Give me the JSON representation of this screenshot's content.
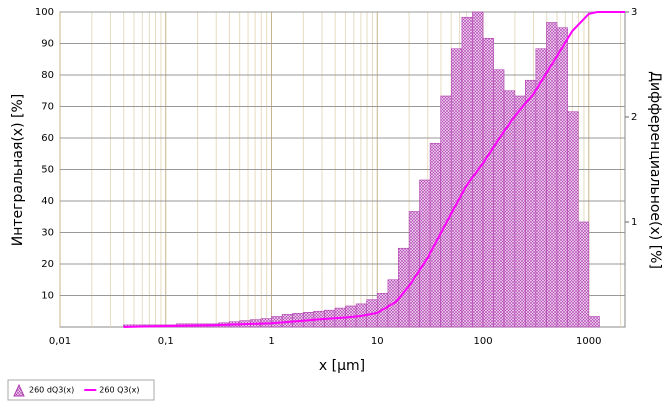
{
  "chart_data": {
    "type": "combo",
    "xlabel": "x [µm]",
    "ylabel": "Интегральная(x) [%]",
    "y2label": "Дифференциальное(x) [%]",
    "xscale": "log",
    "xlim": [
      0.01,
      2200
    ],
    "xticks": [
      {
        "value": 0.01,
        "label": "0,01"
      },
      {
        "value": 0.1,
        "label": "0,1"
      },
      1,
      10,
      100,
      1000
    ],
    "x_minor_ticks": [
      0.02,
      0.03,
      0.04,
      0.05,
      0.06,
      0.07,
      0.08,
      0.09,
      0.2,
      0.3,
      0.4,
      0.5,
      0.6,
      0.7,
      0.8,
      0.9,
      2,
      3,
      4,
      5,
      6,
      7,
      8,
      9,
      20,
      30,
      40,
      50,
      60,
      70,
      80,
      90,
      200,
      300,
      400,
      500,
      600,
      700,
      800,
      900,
      2000
    ],
    "ylim": [
      0,
      100
    ],
    "yticks": [
      10,
      20,
      30,
      40,
      50,
      60,
      70,
      80,
      90,
      100
    ],
    "y2lim": [
      0,
      3
    ],
    "y2ticks": [
      1,
      2,
      3
    ],
    "grid": true,
    "legend": "bottom-left",
    "series": [
      {
        "name": "260 dQ3(x)",
        "type": "histogram",
        "axis": "y2",
        "color": "#b040b0",
        "bins": [
          0.0398,
          0.0501,
          0.0631,
          0.0794,
          0.1,
          0.126,
          0.158,
          0.2,
          0.251,
          0.316,
          0.398,
          0.501,
          0.631,
          0.794,
          1,
          1.26,
          1.58,
          2,
          2.51,
          3.16,
          3.98,
          5.01,
          6.31,
          7.94,
          10,
          12.6,
          15.8,
          20,
          25.1,
          31.6,
          39.8,
          50.1,
          63.1,
          79.4,
          100,
          126,
          158,
          200,
          251,
          316,
          398,
          501,
          631,
          794,
          1000,
          1260
        ],
        "values": [
          0.02,
          0.02,
          0.02,
          0.02,
          0.02,
          0.03,
          0.03,
          0.03,
          0.03,
          0.04,
          0.05,
          0.06,
          0.07,
          0.08,
          0.1,
          0.12,
          0.13,
          0.14,
          0.15,
          0.16,
          0.18,
          0.2,
          0.22,
          0.26,
          0.32,
          0.45,
          0.75,
          1.1,
          1.4,
          1.75,
          2.2,
          2.65,
          2.95,
          3.0,
          2.75,
          2.45,
          2.25,
          2.2,
          2.35,
          2.65,
          2.9,
          2.85,
          2.05,
          1.0,
          0.1
        ]
      },
      {
        "name": "260 Q3(x)",
        "type": "line",
        "color": "#ff00ff",
        "x": [
          0.04,
          0.1,
          0.3,
          1,
          2,
          3,
          5,
          7,
          10,
          15,
          20,
          30,
          50,
          70,
          100,
          150,
          200,
          300,
          500,
          700,
          1000,
          1200,
          1500,
          2200
        ],
        "values": [
          0,
          0.3,
          0.6,
          1.2,
          2,
          2.5,
          3,
          3.5,
          4.5,
          8,
          13,
          22,
          36,
          45,
          52,
          61,
          67,
          74,
          86,
          94,
          99.4,
          100,
          100,
          100
        ]
      }
    ]
  }
}
